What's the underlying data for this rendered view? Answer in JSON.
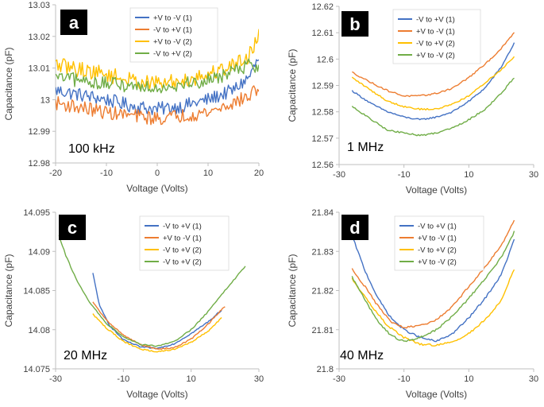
{
  "colors": {
    "blue": "#4472C4",
    "orange": "#ED7D31",
    "yellow": "#FFC000",
    "green": "#70AD47",
    "badge": "#000000",
    "axis": "#bfbfbf"
  },
  "chart_data": [
    {
      "id": "a",
      "type": "line",
      "panel_letter": "a",
      "frequency_label": "100 kHz",
      "xlabel": "Voltage (Volts)",
      "ylabel": "Capacitance (pF)",
      "xlim": [
        -20,
        20
      ],
      "ylim": [
        12.98,
        13.03
      ],
      "xticks": [
        -20,
        -10,
        0,
        10,
        20
      ],
      "xtick_labels": [
        "-20",
        "-10",
        "0",
        "10",
        "20"
      ],
      "yticks": [
        12.98,
        12.99,
        13.0,
        13.01,
        13.02,
        13.03
      ],
      "ytick_labels": [
        "12.98",
        "12.99",
        "13",
        "13.01",
        "13.02",
        "13.03"
      ],
      "legend_position": "top-center",
      "series": [
        {
          "name": "+V to -V (1)",
          "color": "blue",
          "noise": 0.0022,
          "x": [
            -20,
            -10,
            -5,
            0,
            5,
            10,
            15,
            18,
            20
          ],
          "y": [
            13.003,
            13.0,
            12.998,
            12.997,
            12.998,
            13.0,
            13.003,
            13.007,
            13.013
          ]
        },
        {
          "name": "-V to +V (1)",
          "color": "orange",
          "noise": 0.0022,
          "x": [
            -20,
            -10,
            0,
            10,
            15,
            18,
            20
          ],
          "y": [
            12.999,
            12.996,
            12.994,
            12.996,
            12.999,
            13.001,
            13.004
          ]
        },
        {
          "name": "+V to -V (2)",
          "color": "yellow",
          "noise": 0.0025,
          "x": [
            -20,
            -10,
            -5,
            0,
            5,
            10,
            15,
            18,
            20
          ],
          "y": [
            13.011,
            13.008,
            13.006,
            13.005,
            13.006,
            13.008,
            13.011,
            13.014,
            13.02
          ]
        },
        {
          "name": "-V to +V (2)",
          "color": "green",
          "noise": 0.0022,
          "x": [
            -20,
            -10,
            0,
            10,
            15,
            18,
            20
          ],
          "y": [
            13.007,
            13.005,
            13.004,
            13.006,
            13.009,
            13.011,
            13.01
          ]
        }
      ]
    },
    {
      "id": "b",
      "type": "line",
      "panel_letter": "b",
      "frequency_label": "1 MHz",
      "xlabel": "Voltage (Volts)",
      "ylabel": "Capacitance (pF)",
      "xlim": [
        -30,
        30
      ],
      "ylim": [
        12.56,
        12.62
      ],
      "xticks": [
        -30,
        -10,
        10,
        30
      ],
      "xtick_labels": [
        "-30",
        "-10",
        "10",
        "30"
      ],
      "yticks": [
        12.56,
        12.57,
        12.58,
        12.59,
        12.6,
        12.61,
        12.62
      ],
      "ytick_labels": [
        "12.56",
        "12.57",
        "12.58",
        "12.59",
        "12.6",
        "12.61",
        "12.62"
      ],
      "legend_position": "top-center",
      "series": [
        {
          "name": "-V to +V (1)",
          "color": "blue",
          "noise": 0.0003,
          "x": [
            -26,
            -20,
            -15,
            -10,
            -5,
            0,
            5,
            10,
            15,
            20,
            24
          ],
          "y": [
            12.588,
            12.583,
            12.58,
            12.578,
            12.577,
            12.578,
            12.58,
            12.584,
            12.589,
            12.597,
            12.606
          ]
        },
        {
          "name": "+V to -V (1)",
          "color": "orange",
          "noise": 0.0003,
          "x": [
            -26,
            -20,
            -15,
            -10,
            -5,
            0,
            5,
            10,
            15,
            20,
            24
          ],
          "y": [
            12.595,
            12.591,
            12.588,
            12.586,
            12.586,
            12.587,
            12.589,
            12.593,
            12.598,
            12.604,
            12.61
          ]
        },
        {
          "name": "-V to +V (2)",
          "color": "yellow",
          "noise": 0.0003,
          "x": [
            -26,
            -20,
            -15,
            -10,
            -5,
            0,
            5,
            10,
            15,
            20,
            24
          ],
          "y": [
            12.593,
            12.588,
            12.584,
            12.582,
            12.581,
            12.581,
            12.583,
            12.586,
            12.591,
            12.596,
            12.601
          ]
        },
        {
          "name": "+V to -V (2)",
          "color": "green",
          "noise": 0.0003,
          "x": [
            -26,
            -20,
            -15,
            -10,
            -5,
            0,
            5,
            10,
            15,
            20,
            24
          ],
          "y": [
            12.582,
            12.577,
            12.573,
            12.572,
            12.571,
            12.572,
            12.574,
            12.577,
            12.581,
            12.587,
            12.593
          ]
        }
      ]
    },
    {
      "id": "c",
      "type": "line",
      "panel_letter": "c",
      "frequency_label": "20 MHz",
      "xlabel": "Voltage (Volts)",
      "ylabel": "Capacitance (pF)",
      "xlim": [
        -30,
        30
      ],
      "ylim": [
        14.075,
        14.095
      ],
      "xticks": [
        -30,
        -10,
        10,
        30
      ],
      "xtick_labels": [
        "-30",
        "-10",
        "10",
        "30"
      ],
      "yticks": [
        14.075,
        14.08,
        14.085,
        14.09,
        14.095
      ],
      "ytick_labels": [
        "14.075",
        "14.08",
        "14.085",
        "14.09",
        "14.095"
      ],
      "legend_position": "top-right",
      "series": [
        {
          "name": "-V to +V (1)",
          "color": "blue",
          "noise": 8e-05,
          "x": [
            -19,
            -17,
            -14,
            -10,
            -5,
            0,
            5,
            10,
            15,
            19
          ],
          "y": [
            14.0872,
            14.083,
            14.0805,
            14.0787,
            14.0778,
            14.0776,
            14.0782,
            14.0795,
            14.081,
            14.0825
          ]
        },
        {
          "name": "+V to -V (1)",
          "color": "orange",
          "noise": 8e-05,
          "x": [
            -19,
            -15,
            -10,
            -5,
            0,
            5,
            10,
            15,
            20
          ],
          "y": [
            14.0835,
            14.0812,
            14.0793,
            14.0781,
            14.0775,
            14.0777,
            14.0788,
            14.0807,
            14.083
          ]
        },
        {
          "name": "-V to +V (2)",
          "color": "yellow",
          "noise": 8e-05,
          "x": [
            -19,
            -15,
            -10,
            -5,
            0,
            5,
            10,
            15,
            19
          ],
          "y": [
            14.082,
            14.0802,
            14.0785,
            14.0775,
            14.0772,
            14.0775,
            14.0784,
            14.0798,
            14.0815
          ]
        },
        {
          "name": "-V to +V (2)",
          "color": "green",
          "noise": 8e-05,
          "x": [
            -29,
            -27,
            -24,
            -20,
            -15,
            -10,
            -5,
            0,
            5,
            10,
            15,
            20,
            26
          ],
          "y": [
            14.092,
            14.0895,
            14.0865,
            14.0835,
            14.0808,
            14.0791,
            14.0781,
            14.0779,
            14.0785,
            14.08,
            14.0823,
            14.085,
            14.0881
          ]
        }
      ]
    },
    {
      "id": "d",
      "type": "line",
      "panel_letter": "d",
      "frequency_label": "40 MHz",
      "xlabel": "Voltage (Volts)",
      "ylabel": "Capacitance (pF)",
      "xlim": [
        -30,
        30
      ],
      "ylim": [
        21.8,
        21.84
      ],
      "xticks": [
        -30,
        -10,
        10,
        30
      ],
      "xtick_labels": [
        "-30",
        "-10",
        "10",
        "30"
      ],
      "yticks": [
        21.8,
        21.81,
        21.82,
        21.83,
        21.84
      ],
      "ytick_labels": [
        "21.8",
        "21.81",
        "21.82",
        "21.83",
        "21.84"
      ],
      "legend_position": "top-center",
      "series": [
        {
          "name": "-V to +V (1)",
          "color": "blue",
          "noise": 0.00025,
          "x": [
            -26,
            -22,
            -18,
            -14,
            -10,
            -5,
            0,
            5,
            10,
            15,
            20,
            24
          ],
          "y": [
            21.834,
            21.825,
            21.818,
            21.813,
            21.81,
            21.808,
            21.807,
            21.809,
            21.813,
            21.818,
            21.824,
            21.833
          ]
        },
        {
          "name": "+V to -V (1)",
          "color": "orange",
          "noise": 0.00025,
          "x": [
            -26,
            -22,
            -18,
            -14,
            -10,
            -5,
            0,
            5,
            10,
            15,
            20,
            24
          ],
          "y": [
            21.8255,
            21.821,
            21.816,
            21.812,
            21.8105,
            21.811,
            21.8125,
            21.816,
            21.821,
            21.826,
            21.8315,
            21.838
          ]
        },
        {
          "name": "-V to +V (2)",
          "color": "yellow",
          "noise": 0.00025,
          "x": [
            -26,
            -20,
            -15,
            -10,
            -5,
            0,
            5,
            10,
            15,
            20,
            24
          ],
          "y": [
            21.823,
            21.816,
            21.811,
            21.808,
            21.8063,
            21.806,
            21.8068,
            21.809,
            21.8125,
            21.8175,
            21.8255
          ]
        },
        {
          "name": "+V to -V (2)",
          "color": "green",
          "noise": 0.00025,
          "x": [
            -26,
            -22,
            -18,
            -14,
            -10,
            -5,
            0,
            5,
            10,
            15,
            20,
            24
          ],
          "y": [
            21.8235,
            21.8175,
            21.812,
            21.8085,
            21.807,
            21.808,
            21.81,
            21.8135,
            21.818,
            21.823,
            21.8285,
            21.835
          ]
        }
      ]
    }
  ]
}
